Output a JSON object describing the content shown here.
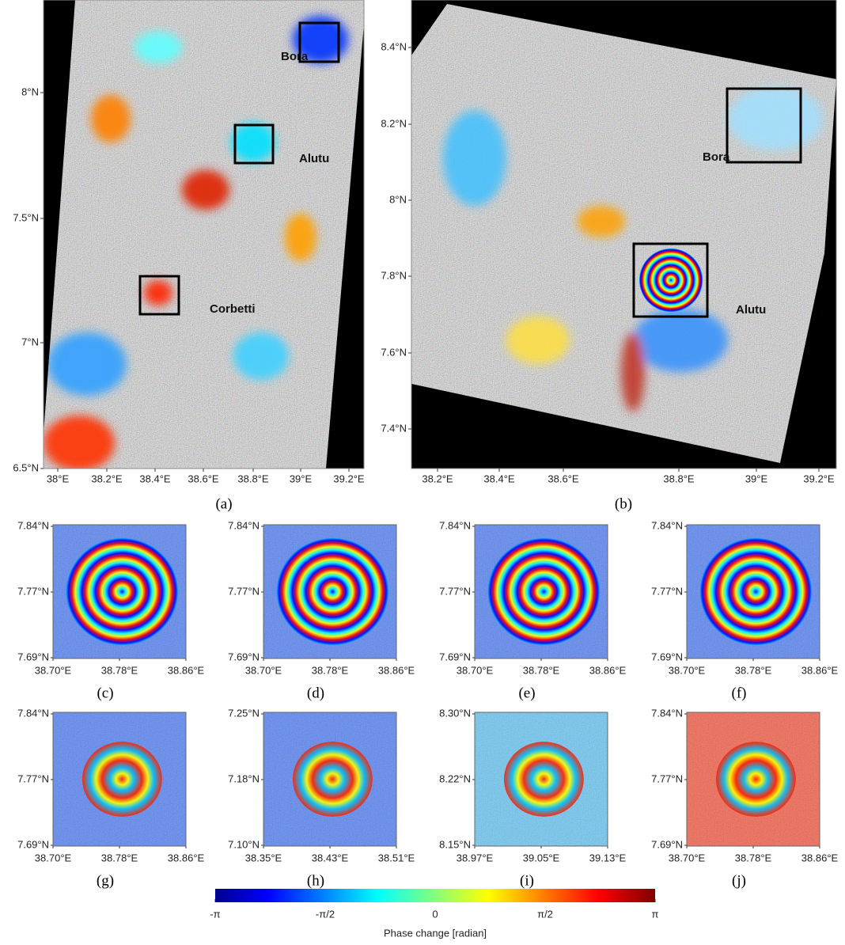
{
  "panels": [
    {
      "caption": "(a)",
      "yticks": [
        "8°N",
        "7.5°N",
        "7°N",
        "6.5°N"
      ],
      "xticks": [
        "38°E",
        "38.2°E",
        "38.4°E",
        "38.6°E",
        "38.8°E",
        "39°E",
        "39.2°E"
      ],
      "annotations": [
        "Bora",
        "Alutu",
        "Corbetti"
      ]
    },
    {
      "caption": "(b)",
      "yticks": [
        "8.4°N",
        "8.2°N",
        "8°N",
        "7.8°N",
        "7.6°N",
        "7.4°N"
      ],
      "xticks": [
        "38.2°E",
        "38.4°E",
        "38.6°E",
        "38.8°E",
        "39°E",
        "39.2°E"
      ],
      "annotations": [
        "Bora",
        "Alutu"
      ]
    }
  ],
  "insets": [
    {
      "caption": "(c)",
      "yticks": [
        "7.84°N",
        "7.77°N",
        "7.69°N"
      ],
      "xticks": [
        "38.70°E",
        "38.78°E",
        "38.86°E"
      ]
    },
    {
      "caption": "(d)",
      "yticks": [
        "7.84°N",
        "7.77°N",
        "7.69°N"
      ],
      "xticks": [
        "38.70°E",
        "38.78°E",
        "38.86°E"
      ]
    },
    {
      "caption": "(e)",
      "yticks": [
        "7.84°N",
        "7.77°N",
        "7.69°N"
      ],
      "xticks": [
        "38.70°E",
        "38.78°E",
        "38.86°E"
      ]
    },
    {
      "caption": "(f)",
      "yticks": [
        "7.84°N",
        "7.77°N",
        "7.69°N"
      ],
      "xticks": [
        "38.70°E",
        "38.78°E",
        "38.86°E"
      ]
    },
    {
      "caption": "(g)",
      "yticks": [
        "7.84°N",
        "7.77°N",
        "7.69°N"
      ],
      "xticks": [
        "38.70°E",
        "38.78°E",
        "38.86°E"
      ]
    },
    {
      "caption": "(h)",
      "yticks": [
        "7.25°N",
        "7.18°N",
        "7.10°N"
      ],
      "xticks": [
        "38.35°E",
        "38.43°E",
        "38.51°E"
      ]
    },
    {
      "caption": "(i)",
      "yticks": [
        "8.30°N",
        "8.22°N",
        "8.15°N"
      ],
      "xticks": [
        "38.97°E",
        "39.05°E",
        "39.13°E"
      ]
    },
    {
      "caption": "(j)",
      "yticks": [
        "7.84°N",
        "7.77°N",
        "7.69°N"
      ],
      "xticks": [
        "38.70°E",
        "38.78°E",
        "38.86°E"
      ]
    }
  ],
  "colorbar": {
    "ticks": [
      "-π",
      "-π/2",
      "0",
      "π/2",
      "π"
    ],
    "label": "Phase change [radian]"
  }
}
